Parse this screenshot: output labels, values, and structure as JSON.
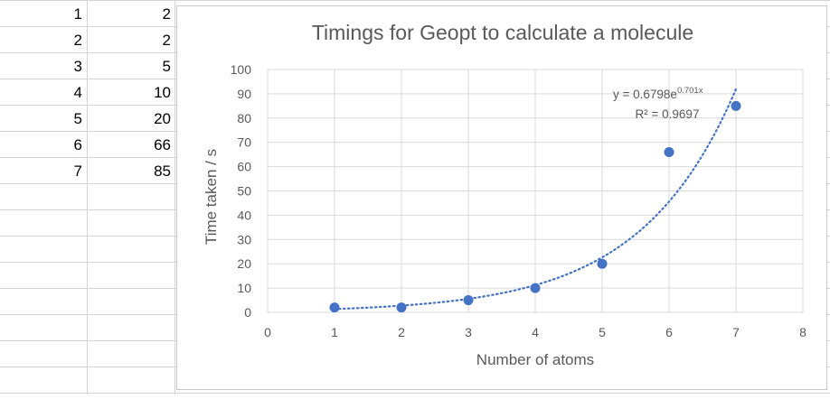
{
  "sheet": {
    "rows": [
      {
        "a": "1",
        "b": "2"
      },
      {
        "a": "2",
        "b": "2"
      },
      {
        "a": "3",
        "b": "5"
      },
      {
        "a": "4",
        "b": "10"
      },
      {
        "a": "5",
        "b": "20"
      },
      {
        "a": "6",
        "b": "66"
      },
      {
        "a": "7",
        "b": "85"
      }
    ]
  },
  "chart_data": {
    "type": "scatter",
    "title": "Timings for Geopt to calculate a molecule",
    "xlabel": "Number of atoms",
    "ylabel": "Time taken / s",
    "xlim": [
      0,
      8
    ],
    "ylim": [
      0,
      100
    ],
    "xticks": [
      "0",
      "1",
      "2",
      "3",
      "4",
      "5",
      "6",
      "7",
      "8"
    ],
    "yticks": [
      "0",
      "10",
      "20",
      "30",
      "40",
      "50",
      "60",
      "70",
      "80",
      "90",
      "100"
    ],
    "grid": true,
    "series": [
      {
        "x": [
          1,
          2,
          3,
          4,
          5,
          6,
          7
        ],
        "y": [
          2,
          2,
          5,
          10,
          20,
          66,
          85
        ],
        "color": "#4472c4"
      }
    ],
    "trendline": {
      "type": "exponential",
      "a": 0.6798,
      "b": 0.701,
      "x_range": [
        1,
        7
      ],
      "color": "#4472c4",
      "equation_prefix": "y = 0.6798e",
      "equation_exponent": "0.701x",
      "r_squared": "R² = 0.9697"
    }
  }
}
